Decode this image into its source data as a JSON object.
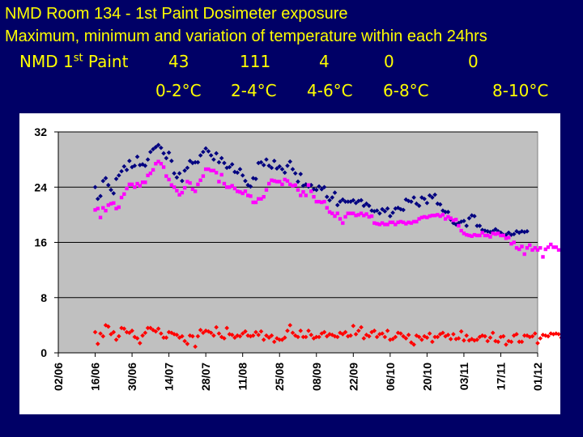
{
  "title_line1": "NMD Room 134 - 1st Paint Dosimeter exposure",
  "title_line2": "Maximum, minimum and variation of temperature within each 24hrs",
  "summary": {
    "label_main": "NMD 1",
    "label_sup": "st",
    "label_end": " Paint",
    "counts": [
      "43",
      "111",
      "4",
      "0",
      "0"
    ],
    "ranges": [
      "0-2°C",
      "2-4°C",
      "4-6°C",
      "6-8°C",
      "8-10°C"
    ]
  },
  "colors": {
    "background": "#000066",
    "text": "#ffff00",
    "plot_area": "#c0c0c0",
    "max_series": "#000080",
    "min_series": "#ff00ff",
    "variation_series": "#ff0000"
  },
  "chart_data": {
    "type": "scatter",
    "x_type": "date",
    "xlim": [
      "2008-06-02",
      "2008-12-01"
    ],
    "ylim": [
      0,
      32
    ],
    "y_ticks": [
      "0",
      "8",
      "16",
      "24",
      "32"
    ],
    "x_ticks": [
      "02/06",
      "16/06",
      "30/06",
      "14/07",
      "28/07",
      "11/08",
      "25/08",
      "08/09",
      "22/09",
      "06/10",
      "20/10",
      "03/11",
      "17/11",
      "01/12"
    ],
    "grid": "horizontal",
    "legend": "none",
    "series": [
      {
        "color": "#000080",
        "marker": "diamond",
        "x_start": "2008-06-16",
        "values": [
          24,
          22.3,
          22.7,
          24.9,
          25.3,
          24.3,
          23.6,
          23.1,
          25.2,
          25.7,
          26.3,
          27,
          26.5,
          27.8,
          26.9,
          27.1,
          28.4,
          27.2,
          27.3,
          27.1,
          28,
          29.1,
          29.5,
          29.8,
          30.1,
          29.7,
          28.9,
          28.2,
          29,
          27.8,
          26,
          25.4,
          26,
          24.9,
          26.4,
          26.8,
          27.8,
          27.5,
          27.6,
          27.6,
          28.6,
          29.1,
          29.6,
          29.2,
          28.6,
          28,
          28.9,
          27.6,
          28.2,
          27.5,
          26.8,
          26.9,
          27.3,
          26.2,
          26.1,
          26.6,
          25.7,
          24.9,
          24.3,
          24.1,
          25.3,
          25.2,
          27.5,
          27.6,
          27.2,
          28,
          27.1,
          26.8,
          27.8,
          26.7,
          27,
          26.6,
          26.1,
          27.1,
          27.7,
          26.6,
          26,
          24.8,
          25.9,
          24.2,
          24.4,
          24.1,
          24.3,
          23.7,
          23.6,
          24.1,
          23.7,
          24,
          22.6,
          22.1,
          22.5,
          23.2,
          21.4,
          21.9,
          22.2,
          21.9,
          21.9,
          21.9,
          22.1,
          21.7,
          22,
          22.1,
          21.3,
          21.6,
          21.3,
          20.6,
          20.5,
          20.6,
          20.2,
          20.8,
          20.5,
          20.9,
          19.8,
          20.3,
          20.9,
          21,
          20.8,
          20.7,
          22.2,
          22,
          21.9,
          22.5,
          21.6,
          21.3,
          22.5,
          22.3,
          21.7,
          22.8,
          22.5,
          22.9,
          21.6,
          21.5,
          20.6,
          20.4,
          20.4,
          19.3,
          18.8,
          18.6,
          18.8,
          19,
          19.1,
          18.4,
          19.5,
          19.9,
          19.8,
          18.4,
          18.4,
          17.8,
          17.7,
          17.6,
          17.5,
          17.6,
          17.9,
          17.6,
          17.4,
          17.1,
          17.1,
          17.4,
          17.1,
          17.2,
          17.6,
          17.4,
          17.6,
          17.5,
          17.6
        ]
      },
      {
        "color": "#ff00ff",
        "marker": "square",
        "x_start": "2008-06-16",
        "values": [
          20.7,
          20.9,
          19.6,
          21,
          20.6,
          21.4,
          21.6,
          21.7,
          20.9,
          21.1,
          22.5,
          23,
          23.8,
          24.4,
          24.4,
          24,
          24.5,
          24.2,
          24.7,
          24.7,
          25.7,
          26,
          26.5,
          27.4,
          27.7,
          27.4,
          26.9,
          25.6,
          25.1,
          24.3,
          24,
          23.5,
          22.9,
          23.2,
          23.9,
          24.8,
          24.6,
          23.7,
          23.4,
          24.4,
          25,
          25.6,
          26.6,
          26.6,
          26.4,
          26.4,
          26.1,
          24.8,
          25.8,
          24.5,
          24,
          24,
          24.2,
          23.8,
          23.4,
          23.3,
          23.1,
          23.4,
          22.8,
          22.7,
          21.8,
          21.8,
          22.3,
          22.3,
          22.6,
          23.6,
          24.5,
          25,
          24.9,
          24.8,
          24.8,
          24.4,
          25.1,
          24.9,
          24.4,
          24.2,
          24.3,
          23.6,
          22.8,
          23.3,
          22.8,
          24.3,
          23.4,
          22.6,
          21.9,
          21.9,
          21.8,
          21.9,
          21,
          20.4,
          20.2,
          19.8,
          20.2,
          19.4,
          18.8,
          19.7,
          20.2,
          20.2,
          20.2,
          19.9,
          20,
          20.2,
          19.9,
          20.1,
          19.7,
          19.8,
          18.8,
          18.7,
          18.6,
          18.8,
          18.6,
          18.6,
          18.9,
          18.9,
          18.6,
          18.9,
          19,
          18.9,
          18.7,
          18.9,
          18.8,
          19,
          19,
          19.4,
          19.6,
          19.7,
          19.6,
          19.8,
          19.9,
          19.9,
          20,
          19.8,
          20,
          19.4,
          19.7,
          19.5,
          19.2,
          19.3,
          18.4,
          17.7,
          17.3,
          17.1,
          17,
          16.9,
          17.1,
          17,
          17,
          17.4,
          17,
          17,
          16.8,
          17.3,
          17.2,
          17.3,
          17,
          17,
          16.6,
          16.7,
          15.8,
          16,
          15.2,
          15,
          15.4,
          14.3,
          15.2,
          15.6,
          14.9,
          15.2,
          14.9,
          15.2,
          13.9,
          15,
          15.3,
          15.7,
          15.3,
          15.3,
          14.9
        ]
      },
      {
        "color": "#ff0000",
        "marker": "diamond",
        "x_start": "2008-06-16",
        "values": [
          3,
          1.3,
          2.8,
          2.4,
          4,
          3.8,
          2.7,
          3,
          1.9,
          2.4,
          3.6,
          3.5,
          3,
          2.9,
          3.2,
          2.3,
          2.1,
          1.4,
          2.5,
          2.9,
          3.6,
          3.6,
          3.3,
          3.1,
          3.5,
          2.8,
          2.2,
          2.2,
          3,
          2.9,
          2.7,
          2.6,
          2.2,
          2.4,
          1.7,
          1.3,
          2.5,
          2.4,
          0.9,
          2.4,
          3.3,
          2.9,
          3.2,
          3.1,
          2.9,
          2.5,
          3.7,
          2.8,
          2.3,
          2.1,
          3.6,
          2.7,
          2.6,
          2.2,
          2.5,
          2.4,
          2.8,
          3.1,
          2.5,
          2.4,
          2.5,
          3,
          2.6,
          3.1,
          1.9,
          2.5,
          2.2,
          2.5,
          1.6,
          2.1,
          1.9,
          1.9,
          2.2,
          3.2,
          4,
          2.9,
          2.5,
          2.3,
          3.2,
          2.3,
          2.3,
          3.2,
          2.6,
          2.1,
          2.3,
          2.3,
          2.8,
          3,
          2.4,
          2.7,
          2.6,
          2.4,
          2.3,
          2.9,
          2.7,
          3,
          2.4,
          2.5,
          3.9,
          2.7,
          3.2,
          3.7,
          2.1,
          2.6,
          2.4,
          3,
          3.2,
          2.3,
          2.7,
          2.8,
          2.3,
          3.2,
          1.9,
          2,
          2.3,
          2.9,
          2.8,
          2.4,
          2.1,
          2.6,
          1.5,
          1.2,
          2.5,
          2.3,
          1.9,
          2.4,
          2.2,
          2.8,
          1.6,
          2.3,
          2.3,
          2.7,
          2.9,
          2.4,
          2.6,
          2,
          2.7,
          2,
          2.1,
          3.1,
          1.8,
          2.5,
          1.8,
          2,
          1.8,
          1.9,
          2.3,
          2.5,
          2.4,
          1.7,
          2.2,
          2.9,
          1.7,
          1.6,
          2.3,
          2.4,
          1.2,
          1.7,
          1.6,
          2.5,
          2.7,
          1.6,
          1.6,
          2.5,
          2.5,
          2.3,
          2.4,
          2.8,
          1.4,
          2.1,
          2.6,
          2.5,
          2.4,
          2.8,
          2.7,
          2.8,
          2.7,
          2.2,
          2.3,
          2.3,
          2.1,
          2.6
        ]
      }
    ]
  }
}
